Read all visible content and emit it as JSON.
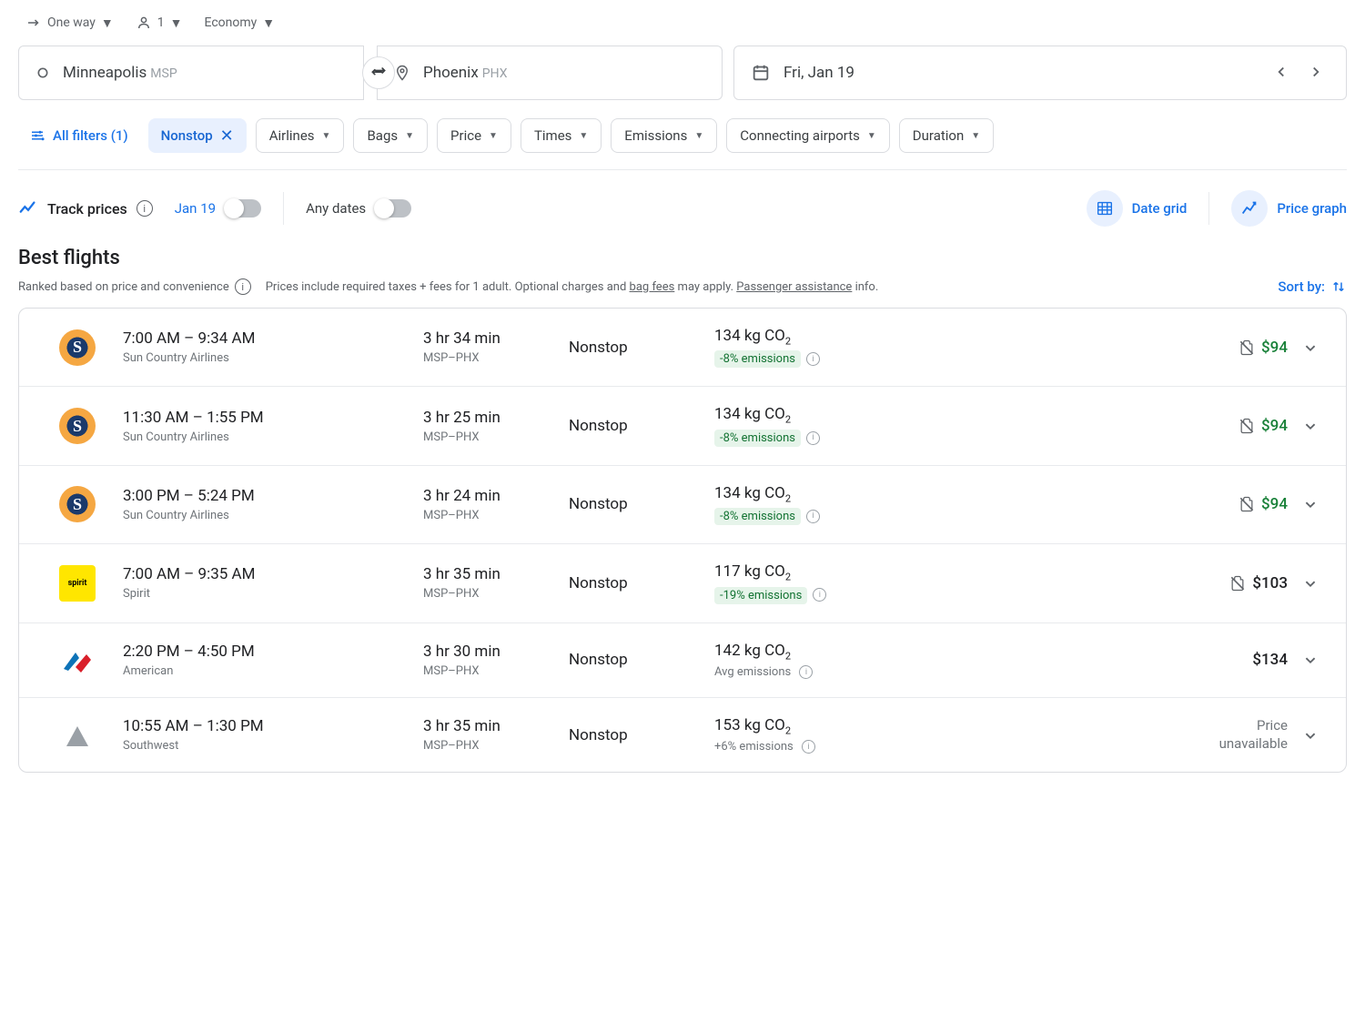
{
  "trip": {
    "type": "One way",
    "passengers": "1",
    "class": "Economy"
  },
  "search": {
    "origin_city": "Minneapolis",
    "origin_code": "MSP",
    "dest_city": "Phoenix",
    "dest_code": "PHX",
    "date": "Fri, Jan 19"
  },
  "filters": {
    "all_label": "All filters (1)",
    "active": {
      "label": "Nonstop"
    },
    "chips": [
      "Airlines",
      "Bags",
      "Price",
      "Times",
      "Emissions",
      "Connecting airports",
      "Duration"
    ]
  },
  "track": {
    "label": "Track prices",
    "date_label": "Jan 19",
    "any_label": "Any dates"
  },
  "tools": {
    "date_grid": "Date grid",
    "price_graph": "Price graph"
  },
  "section": {
    "title": "Best flights",
    "ranked": "Ranked based on price and convenience",
    "price_note_1": "Prices include required taxes + fees for 1 adult. Optional charges and ",
    "bag_fees": "bag fees",
    "price_note_2": " may apply. ",
    "passenger_assist": "Passenger assistance",
    "price_note_3": " info.",
    "sort_label": "Sort by:"
  },
  "flights": [
    {
      "logo": "sun",
      "times": "7:00 AM – 9:34 AM",
      "airline": "Sun Country Airlines",
      "duration": "3 hr 34 min",
      "route": "MSP–PHX",
      "stops": "Nonstop",
      "co2": "134 kg CO",
      "em": "-8% emissions",
      "em_type": "good",
      "price": "$94",
      "price_style": "green",
      "carry_icon": true
    },
    {
      "logo": "sun",
      "times": "11:30 AM – 1:55 PM",
      "airline": "Sun Country Airlines",
      "duration": "3 hr 25 min",
      "route": "MSP–PHX",
      "stops": "Nonstop",
      "co2": "134 kg CO",
      "em": "-8% emissions",
      "em_type": "good",
      "price": "$94",
      "price_style": "green",
      "carry_icon": true
    },
    {
      "logo": "sun",
      "times": "3:00 PM – 5:24 PM",
      "airline": "Sun Country Airlines",
      "duration": "3 hr 24 min",
      "route": "MSP–PHX",
      "stops": "Nonstop",
      "co2": "134 kg CO",
      "em": "-8% emissions",
      "em_type": "good",
      "price": "$94",
      "price_style": "green",
      "carry_icon": true
    },
    {
      "logo": "spirit",
      "times": "7:00 AM – 9:35 AM",
      "airline": "Spirit",
      "duration": "3 hr 35 min",
      "route": "MSP–PHX",
      "stops": "Nonstop",
      "co2": "117 kg CO",
      "em": "-19% emissions",
      "em_type": "good",
      "price": "$103",
      "price_style": "black",
      "carry_icon": true
    },
    {
      "logo": "aa",
      "times": "2:20 PM – 4:50 PM",
      "airline": "American",
      "duration": "3 hr 30 min",
      "route": "MSP–PHX",
      "stops": "Nonstop",
      "co2": "142 kg CO",
      "em": "Avg emissions",
      "em_type": "avg",
      "price": "$134",
      "price_style": "black",
      "carry_icon": false
    },
    {
      "logo": "sw",
      "times": "10:55 AM – 1:30 PM",
      "airline": "Southwest",
      "duration": "3 hr 35 min",
      "route": "MSP–PHX",
      "stops": "Nonstop",
      "co2": "153 kg CO",
      "em": "+6% emissions",
      "em_type": "pos",
      "price": "Price\nunavailable",
      "price_style": "unavail",
      "carry_icon": false
    }
  ],
  "colors": {
    "blue": "#1a73e8",
    "green_price": "#188038",
    "green_badge_bg": "#e6f4ea",
    "green_badge_text": "#137333",
    "border": "#dadce0"
  }
}
